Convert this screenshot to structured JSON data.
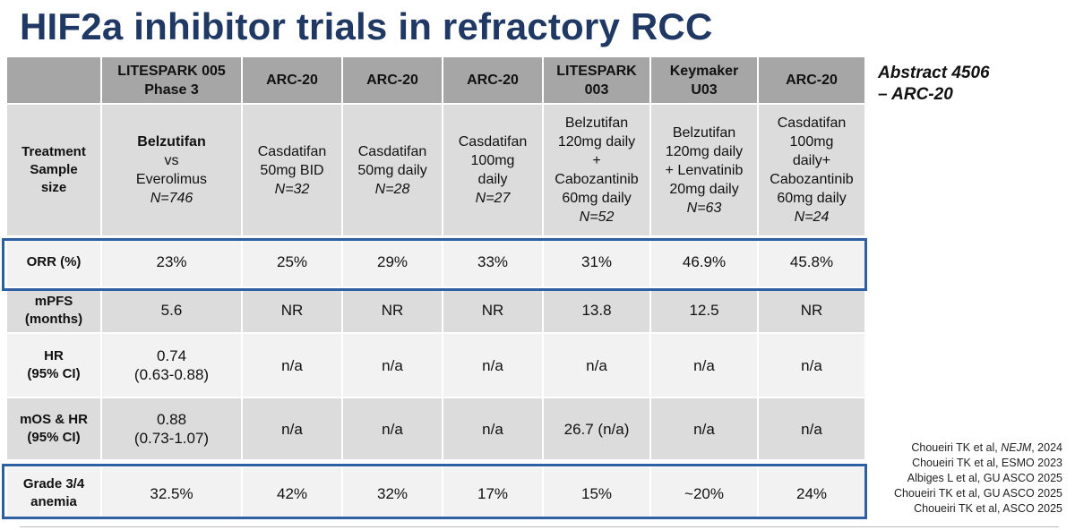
{
  "title": "HIF2a inhibitor trials in refractory RCC",
  "abstract_note": {
    "line1": "Abstract 4506",
    "line2": "– ARC-20"
  },
  "header": [
    {
      "line1": "",
      "line2": ""
    },
    {
      "line1": "LITESPARK 005",
      "line2": "Phase 3"
    },
    {
      "line1": "ARC-20",
      "line2": ""
    },
    {
      "line1": "ARC-20",
      "line2": ""
    },
    {
      "line1": "ARC-20",
      "line2": ""
    },
    {
      "line1": "LITESPARK",
      "line2": "003"
    },
    {
      "line1": "Keymaker",
      "line2": "U03"
    },
    {
      "line1": "ARC-20",
      "line2": ""
    }
  ],
  "treatment_row": {
    "label": [
      "Treatment",
      "Sample",
      "size"
    ],
    "cells": [
      {
        "lines": [
          "Belzutifan",
          "vs",
          "Everolimus"
        ],
        "n": "N=746"
      },
      {
        "lines": [
          "Casdatifan",
          "50mg BID"
        ],
        "n": "N=32"
      },
      {
        "lines": [
          "Casdatifan",
          "50mg daily"
        ],
        "n": "N=28"
      },
      {
        "lines": [
          "Casdatifan",
          "100mg",
          "daily"
        ],
        "n": "N=27"
      },
      {
        "lines": [
          "Belzutifan",
          "120mg daily",
          "+",
          "Cabozantinib",
          "60mg daily"
        ],
        "n": "N=52"
      },
      {
        "lines": [
          "Belzutifan",
          "120mg daily",
          "+ Lenvatinib",
          "20mg daily"
        ],
        "n": "N=63"
      },
      {
        "lines": [
          "Casdatifan",
          "100mg",
          "daily+",
          "Cabozantinib",
          "60mg daily"
        ],
        "n": "N=24"
      }
    ]
  },
  "rows": {
    "orr": {
      "label": [
        "ORR (%)"
      ],
      "values": [
        "23%",
        "25%",
        "29%",
        "33%",
        "31%",
        "46.9%",
        "45.8%"
      ]
    },
    "mpfs": {
      "label": [
        "mPFS",
        "(months)"
      ],
      "values": [
        "5.6",
        "NR",
        "NR",
        "NR",
        "13.8",
        "12.5",
        "NR"
      ]
    },
    "hr": {
      "label": [
        "HR",
        "(95% CI)"
      ],
      "values": [
        [
          "0.74",
          "(0.63-0.88)"
        ],
        [
          "n/a"
        ],
        [
          "n/a"
        ],
        [
          "n/a"
        ],
        [
          "n/a"
        ],
        [
          "n/a"
        ],
        [
          "n/a"
        ]
      ]
    },
    "mos": {
      "label": [
        "mOS & HR",
        "(95% CI)"
      ],
      "values": [
        [
          "0.88",
          "(0.73-1.07)"
        ],
        [
          "n/a"
        ],
        [
          "n/a"
        ],
        [
          "n/a"
        ],
        [
          "26.7 (n/a)"
        ],
        [
          "n/a"
        ],
        [
          "n/a"
        ]
      ]
    },
    "anemia": {
      "label": [
        "Grade 3/4",
        "anemia"
      ],
      "values": [
        "32.5%",
        "42%",
        "32%",
        "17%",
        "15%",
        "~20%",
        "24%"
      ]
    }
  },
  "references": [
    {
      "pre": "Choueiri TK et al, ",
      "it": "NEJM",
      "post": ", 2024"
    },
    {
      "pre": "Choueiri TK et al, ESMO 2023",
      "it": "",
      "post": ""
    },
    {
      "pre": "Albiges L et al, GU ASCO 2025",
      "it": "",
      "post": ""
    },
    {
      "pre": "Choueiri TK et al, GU ASCO 2025",
      "it": "",
      "post": ""
    },
    {
      "pre": "Choueiri TK et al, ASCO 2025",
      "it": "",
      "post": ""
    }
  ],
  "highlight_color": "#2e5fa3",
  "title_color": "#1f3864"
}
